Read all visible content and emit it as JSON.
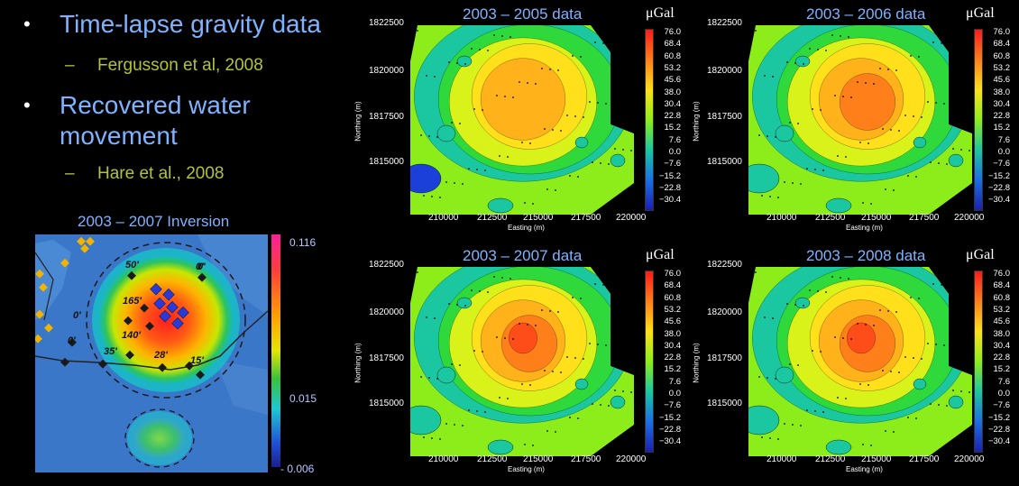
{
  "bullets": [
    {
      "text": "Time-lapse gravity data",
      "sub": "Fergusson et al, 2008"
    },
    {
      "text": "Recovered water movement",
      "sub": "Hare et al., 2008"
    }
  ],
  "inversion": {
    "title": "2003 – 2007 Inversion",
    "colorbar_labels": [
      "0.116",
      "0.015",
      "- 0.006"
    ],
    "depth_labels": [
      "50'",
      "0'",
      "165'",
      "0'",
      "140'",
      "0'",
      "35'",
      "28'",
      "15'",
      "0'"
    ]
  },
  "panels": [
    {
      "title": "2003 – 2005 data",
      "unit": "μGal",
      "peak": 0.78
    },
    {
      "title": "2003 – 2006 data",
      "unit": "μGal",
      "peak": 0.88
    },
    {
      "title": "2003 – 2007 data",
      "unit": "μGal",
      "peak": 0.95
    },
    {
      "title": "2003 – 2008 data",
      "unit": "μGal",
      "peak": 1.0
    }
  ],
  "scale_values": [
    "76.0",
    "68.4",
    "60.8",
    "53.2",
    "45.6",
    "38.0",
    "30.4",
    "22.8",
    "15.2",
    "7.6",
    "0.0",
    "−7.6",
    "−15.2",
    "−22.8",
    "−30.4"
  ],
  "y_ticks": [
    "1822500",
    "1820000",
    "1817500",
    "1815000"
  ],
  "x_ticks": [
    "210000",
    "212500",
    "215000",
    "217500",
    "220000"
  ],
  "x_axis_label": "Easting (m)",
  "y_axis_label": "Northing (m)"
}
